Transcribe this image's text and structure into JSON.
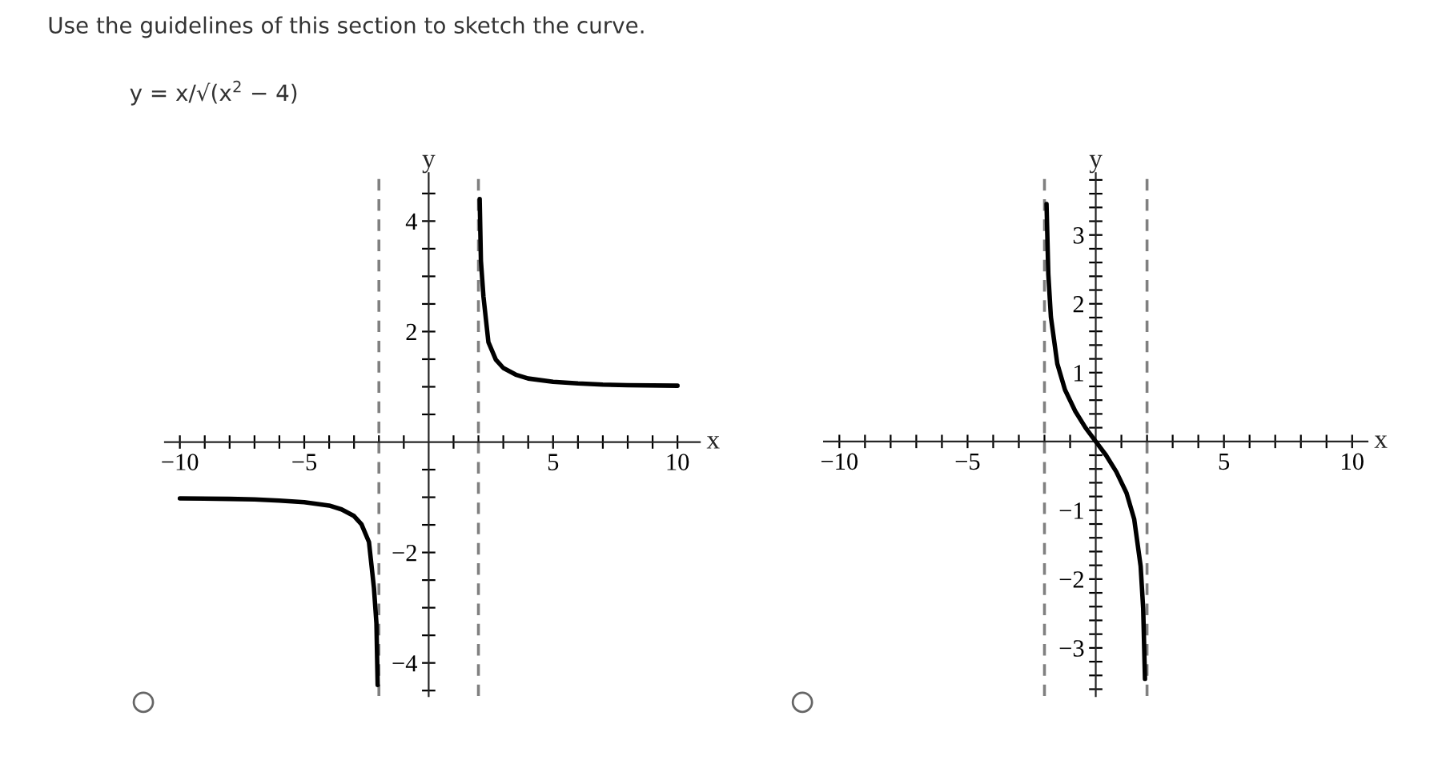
{
  "chart_data": [
    {
      "type": "line",
      "title": "Use the guidelines of this section to sketch the curve.",
      "subtitle": "y = x/√(x$^{2}$ − 4)",
      "xlabel": "x",
      "ylabel": "y",
      "series": [
        {
          "color": "#000000",
          "x": [
            2.05,
            2.1,
            2.2,
            2.4,
            2.7,
            3,
            3.5,
            4,
            5,
            6,
            7,
            8,
            10
          ],
          "values": [
            4.4,
            3.28,
            2.64,
            1.81,
            1.49,
            1.34,
            1.22,
            1.15,
            1.09,
            1.06,
            1.04,
            1.03,
            1.02
          ]
        },
        {
          "color": "#000000",
          "x": [
            -10,
            -8,
            -7,
            -6,
            -5,
            -4,
            -3.5,
            -3,
            -2.7,
            -2.4,
            -2.2,
            -2.1,
            -2.05
          ],
          "values": [
            -1.02,
            -1.03,
            -1.04,
            -1.06,
            -1.09,
            -1.15,
            -1.22,
            -1.34,
            -1.49,
            -1.81,
            -2.64,
            -3.28,
            -4.4
          ]
        }
      ],
      "ref_lines": [
        {
          "axis": "x",
          "value": -2,
          "color": "#808080",
          "line_style": "dashed"
        },
        {
          "axis": "x",
          "value": 2,
          "color": "#808080",
          "line_style": "dashed"
        }
      ],
      "xlim": [
        -10.6,
        10.9
      ],
      "ylim": [
        -4.6,
        4.87
      ],
      "xticks": [
        {
          "value": -10,
          "label": "−10"
        },
        {
          "value": -9,
          "label": null
        },
        {
          "value": -8,
          "label": null
        },
        {
          "value": -7,
          "label": null
        },
        {
          "value": -6,
          "label": null
        },
        {
          "value": -5,
          "label": "−5"
        },
        {
          "value": -4,
          "label": null
        },
        {
          "value": -3,
          "label": null
        },
        {
          "value": -2,
          "label": null
        },
        {
          "value": -1,
          "label": null
        },
        {
          "value": 1,
          "label": null
        },
        {
          "value": 2,
          "label": null
        },
        {
          "value": 3,
          "label": null
        },
        {
          "value": 4,
          "label": null
        },
        5,
        {
          "value": 6,
          "label": null
        },
        {
          "value": 7,
          "label": null
        },
        {
          "value": 8,
          "label": null
        },
        {
          "value": 9,
          "label": null
        },
        10
      ],
      "yticks": [
        {
          "value": -4.5,
          "label": null
        },
        {
          "value": -4,
          "label": "−4"
        },
        {
          "value": -3.5,
          "label": null
        },
        {
          "value": -3,
          "label": null
        },
        {
          "value": -2.5,
          "label": null
        },
        {
          "value": -2,
          "label": "−2"
        },
        {
          "value": -1.5,
          "label": null
        },
        {
          "value": -1,
          "label": null
        },
        {
          "value": -0.5,
          "label": null
        },
        {
          "value": 0.5,
          "label": null
        },
        {
          "value": 1,
          "label": null
        },
        {
          "value": 1.5,
          "label": null
        },
        2,
        {
          "value": 2.5,
          "label": null
        },
        {
          "value": 3,
          "label": null
        },
        {
          "value": 3.5,
          "label": null
        },
        4,
        {
          "value": 4.5,
          "label": null
        }
      ],
      "grid": false,
      "legend": false
    },
    {
      "type": "line",
      "xlabel": "x",
      "ylabel": "y",
      "series": [
        {
          "color": "#000000",
          "x": [
            -1.92,
            -1.85,
            -1.75,
            -1.5,
            -1.2,
            -0.8,
            -0.4,
            0,
            0.4,
            0.8,
            1.2,
            1.5,
            1.75,
            1.85,
            1.92
          ],
          "values": [
            3.45,
            2.43,
            1.81,
            1.13,
            0.75,
            0.44,
            0.2,
            0,
            -0.2,
            -0.44,
            -0.75,
            -1.13,
            -1.81,
            -2.43,
            -3.45
          ]
        }
      ],
      "ref_lines": [
        {
          "axis": "x",
          "value": -2,
          "color": "#808080",
          "line_style": "dashed"
        },
        {
          "axis": "x",
          "value": 2,
          "color": "#808080",
          "line_style": "dashed"
        }
      ],
      "xlim": [
        -10.6,
        10.6
      ],
      "ylim": [
        -3.7,
        3.9
      ],
      "xticks": [
        {
          "value": -10,
          "label": "−10"
        },
        {
          "value": -9,
          "label": null
        },
        {
          "value": -8,
          "label": null
        },
        {
          "value": -7,
          "label": null
        },
        {
          "value": -6,
          "label": null
        },
        {
          "value": -5,
          "label": "−5"
        },
        {
          "value": -4,
          "label": null
        },
        {
          "value": -3,
          "label": null
        },
        {
          "value": -2,
          "label": null
        },
        {
          "value": -1,
          "label": null
        },
        {
          "value": 1,
          "label": null
        },
        {
          "value": 2,
          "label": null
        },
        {
          "value": 3,
          "label": null
        },
        {
          "value": 4,
          "label": null
        },
        5,
        {
          "value": 6,
          "label": null
        },
        {
          "value": 7,
          "label": null
        },
        {
          "value": 8,
          "label": null
        },
        {
          "value": 9,
          "label": null
        },
        10
      ],
      "yticks": [
        {
          "value": -3.6,
          "label": null
        },
        {
          "value": -3.4,
          "label": null
        },
        {
          "value": -3.2,
          "label": null
        },
        {
          "value": -3,
          "label": "−3"
        },
        {
          "value": -2.8,
          "label": null
        },
        {
          "value": -2.6,
          "label": null
        },
        {
          "value": -2.4,
          "label": null
        },
        {
          "value": -2.2,
          "label": null
        },
        {
          "value": -2,
          "label": "−2"
        },
        {
          "value": -1.8,
          "label": null
        },
        {
          "value": -1.6,
          "label": null
        },
        {
          "value": -1.4,
          "label": null
        },
        {
          "value": -1.2,
          "label": null
        },
        {
          "value": -1,
          "label": "−1"
        },
        {
          "value": -0.8,
          "label": null
        },
        {
          "value": -0.6,
          "label": null
        },
        {
          "value": -0.4,
          "label": null
        },
        {
          "value": -0.2,
          "label": null
        },
        {
          "value": 0.2,
          "label": null
        },
        {
          "value": 0.4,
          "label": null
        },
        {
          "value": 0.6,
          "label": null
        },
        {
          "value": 0.8,
          "label": null
        },
        1,
        {
          "value": 1.2,
          "label": null
        },
        {
          "value": 1.4,
          "label": null
        },
        {
          "value": 1.6,
          "label": null
        },
        {
          "value": 1.8,
          "label": null
        },
        2,
        {
          "value": 2.2,
          "label": null
        },
        {
          "value": 2.4,
          "label": null
        },
        {
          "value": 2.6,
          "label": null
        },
        {
          "value": 2.8,
          "label": null
        },
        3,
        {
          "value": 3.2,
          "label": null
        },
        {
          "value": 3.4,
          "label": null
        },
        {
          "value": 3.6,
          "label": null
        },
        {
          "value": 3.8,
          "label": null
        }
      ],
      "grid": false,
      "legend": false
    }
  ]
}
